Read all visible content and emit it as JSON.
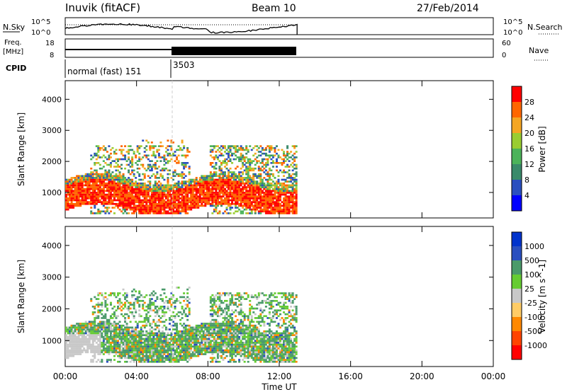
{
  "header": {
    "title": "Inuvik (fitACF)",
    "beam": "Beam 10",
    "date": "27/Feb/2014"
  },
  "noise_panel": {
    "left_label": "N.Sky",
    "left_ticks": [
      "10^5",
      "10^0"
    ],
    "right_label": "N.Search",
    "right_ticks": [
      "10^5",
      "10^0"
    ]
  },
  "freq_panel": {
    "left_label_1": "Freq.",
    "left_label_2": "[MHz]",
    "left_ticks": [
      "18",
      "8"
    ],
    "right_label": "Nave",
    "right_ticks": [
      "60",
      "0"
    ]
  },
  "cpid_panel": {
    "label": "CPID",
    "segments": [
      "normal (fast) 151",
      "3503"
    ]
  },
  "colors": {
    "power": [
      "#0000ff",
      "#2a4fc0",
      "#3a8a6a",
      "#4cb35a",
      "#9acd32",
      "#f5a623",
      "#ff6600",
      "#ff0000"
    ],
    "velocity": [
      "#ff0000",
      "#ff4400",
      "#ff8800",
      "#ffcc66",
      "#c8c8c8",
      "#66cc33",
      "#4a9a6a",
      "#2a4fc0",
      "#0033cc"
    ]
  },
  "chart_data": [
    {
      "type": "heatmap",
      "panel": "power",
      "ylabel": "Slant Range [km]",
      "xlabel": "",
      "x_ticks": [
        "00:00",
        "04:00",
        "08:00",
        "12:00",
        "16:00",
        "20:00",
        "00:00"
      ],
      "xlim_hours": [
        0,
        24
      ],
      "y_ticks": [
        1000,
        2000,
        3000,
        4000
      ],
      "ylim": [
        180,
        4600
      ],
      "colorbar_label": "Power [dB]",
      "colorbar_ticks": [
        4,
        8,
        12,
        16,
        20,
        24,
        28
      ],
      "data_extent_hours": [
        0,
        13
      ],
      "description_bands": [
        {
          "hours": [
            0,
            13
          ],
          "range_km": [
            500,
            1700
          ],
          "dominant": "red"
        },
        {
          "hours": [
            1.5,
            6
          ],
          "range_km": [
            1200,
            2400
          ],
          "dominant": "green"
        },
        {
          "hours": [
            8.5,
            13
          ],
          "range_km": [
            1800,
            2600
          ],
          "dominant": "orange"
        }
      ]
    },
    {
      "type": "heatmap",
      "panel": "velocity",
      "ylabel": "Slant Range [km]",
      "xlabel": "Time UT",
      "x_ticks": [
        "00:00",
        "04:00",
        "08:00",
        "12:00",
        "16:00",
        "20:00",
        "00:00"
      ],
      "xlim_hours": [
        0,
        24
      ],
      "y_ticks": [
        1000,
        2000,
        3000,
        4000
      ],
      "ylim": [
        180,
        4600
      ],
      "colorbar_label": "Velocity [m s^-1]",
      "colorbar_ticks": [
        -1000,
        -500,
        -100,
        -25,
        25,
        100,
        500,
        1000
      ],
      "data_extent_hours": [
        0,
        13
      ]
    }
  ]
}
